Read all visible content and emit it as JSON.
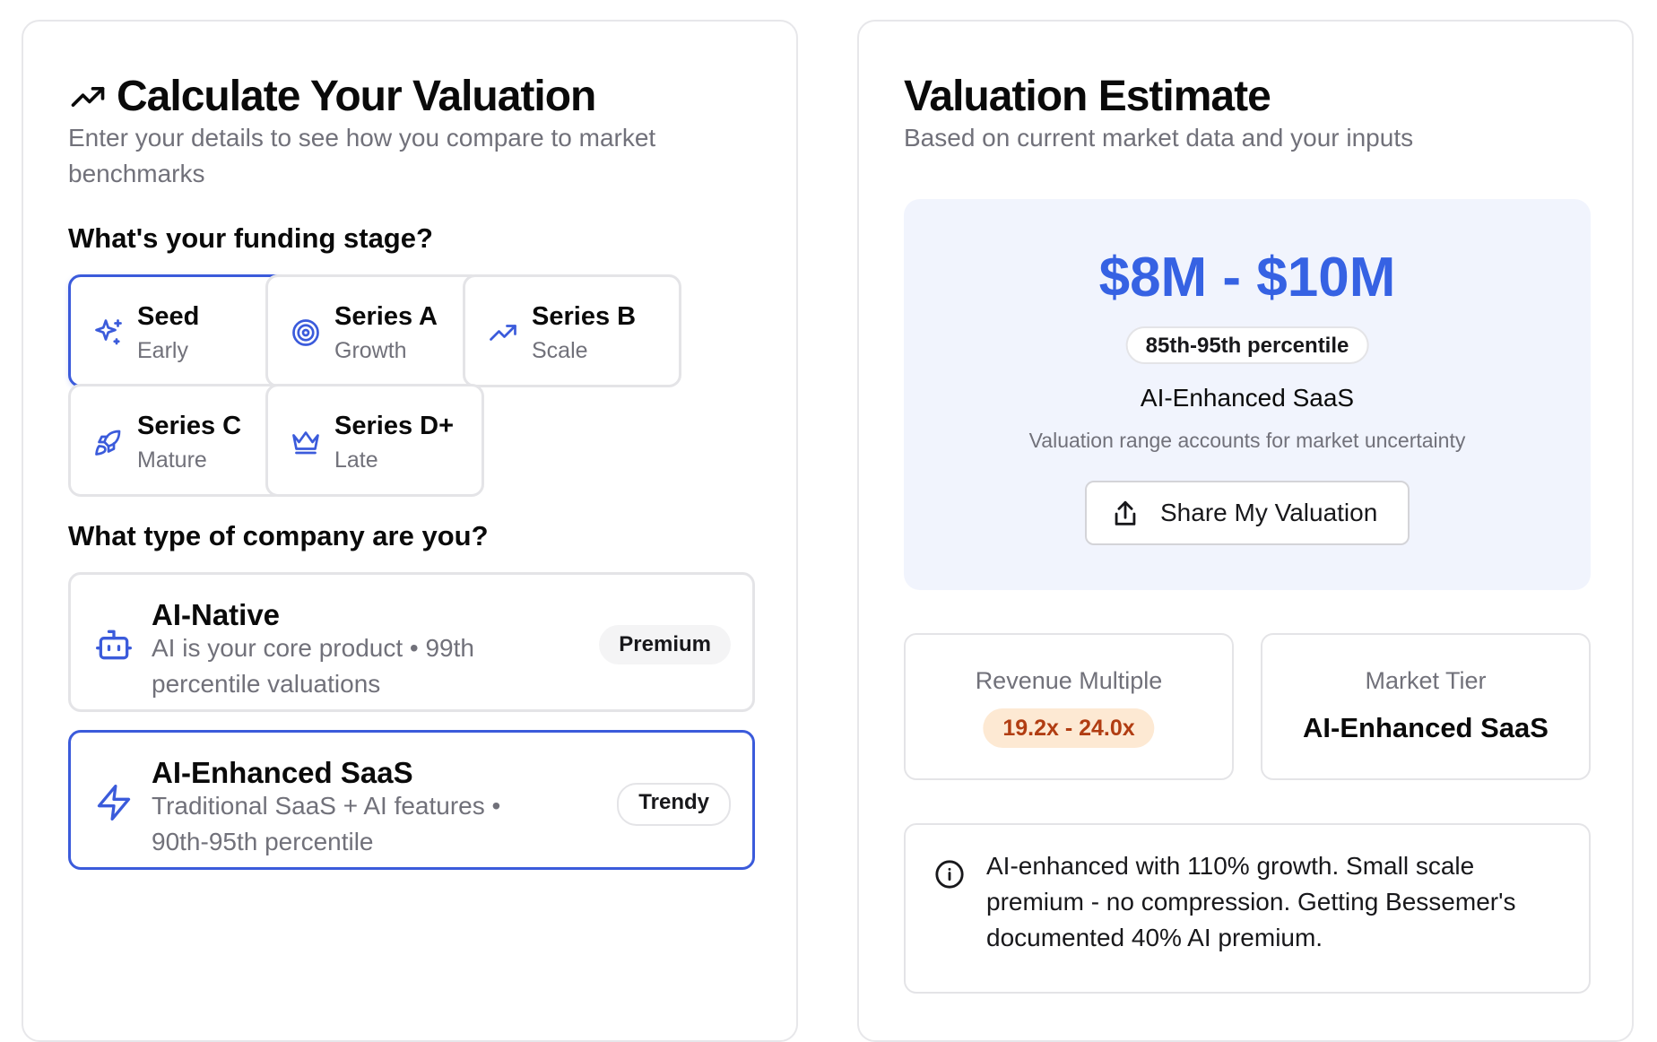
{
  "calculator": {
    "title": "Calculate Your Valuation",
    "subtitle": "Enter your details to see how you compare to market benchmarks",
    "stage_question": "What's your funding stage?",
    "stages": [
      {
        "name": "Seed",
        "desc": "Early",
        "icon": "sparkles-icon",
        "selected": true
      },
      {
        "name": "Series A",
        "desc": "Growth",
        "icon": "target-icon",
        "selected": false
      },
      {
        "name": "Series B",
        "desc": "Scale",
        "icon": "trending-up-icon",
        "selected": false
      },
      {
        "name": "Series C",
        "desc": "Mature",
        "icon": "rocket-icon",
        "selected": false
      },
      {
        "name": "Series D+",
        "desc": "Late",
        "icon": "crown-icon",
        "selected": false
      }
    ],
    "company_question": "What type of company are you?",
    "company_types": [
      {
        "name": "AI-Native",
        "desc": "AI is your core product • 99th percentile valuations",
        "badge": "Premium",
        "icon": "bot-icon",
        "selected": false
      },
      {
        "name": "AI-Enhanced SaaS",
        "desc": "Traditional SaaS + AI features • 90th-95th percentile",
        "badge": "Trendy",
        "icon": "zap-icon",
        "selected": true
      }
    ]
  },
  "estimate": {
    "title": "Valuation Estimate",
    "subtitle": "Based on current market data and your inputs",
    "range": "$8M - $10M",
    "percentile": "85th-95th percentile",
    "company_type": "AI-Enhanced SaaS",
    "note": "Valuation range accounts for market uncertainty",
    "share_label": "Share My Valuation",
    "revenue_multiple_label": "Revenue Multiple",
    "revenue_multiple_value": "19.2x - 24.0x",
    "market_tier_label": "Market Tier",
    "market_tier_value": "AI-Enhanced SaaS",
    "info_text": "AI-enhanced with 110% growth. Small scale premium - no compression. Getting Bessemer's documented 40% AI premium."
  },
  "colors": {
    "accent": "#3b5bdb",
    "range_blue": "#3662e3",
    "estimate_bg": "#f1f4fd",
    "multiple_pill_bg": "#fde9d3",
    "multiple_pill_text": "#b13d12"
  }
}
